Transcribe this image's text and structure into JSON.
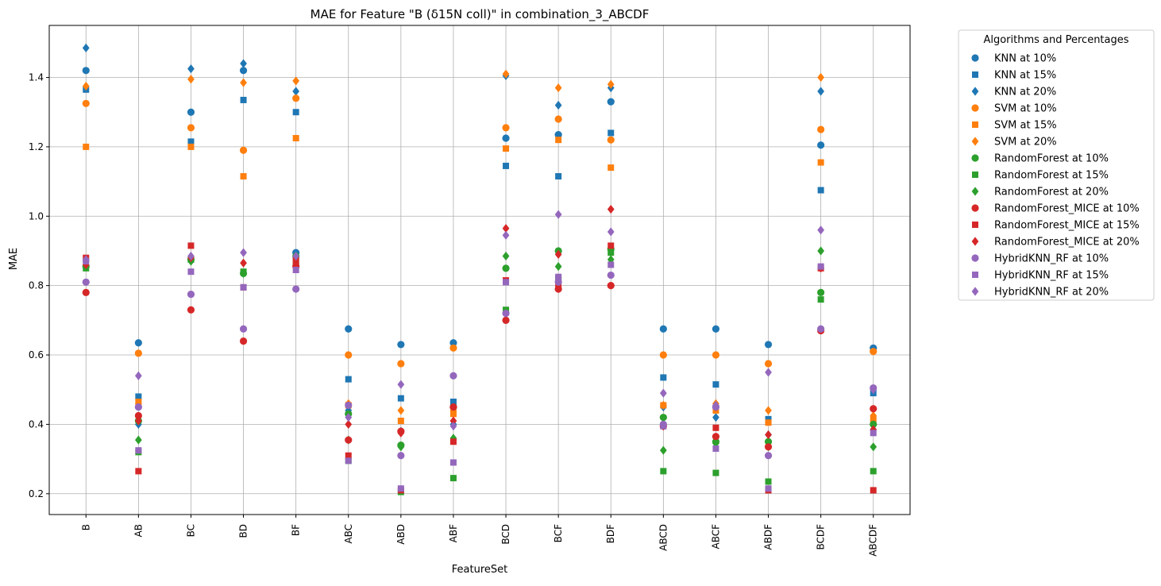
{
  "chart_data": {
    "type": "scatter",
    "title": "MAE for Feature \"B (δ15N coll)\" in combination_3_ABCDF",
    "xlabel": "FeatureSet",
    "ylabel": "MAE",
    "categories": [
      "B",
      "AB",
      "BC",
      "BD",
      "BF",
      "ABC",
      "ABD",
      "ABF",
      "BCD",
      "BCF",
      "BDF",
      "ABCD",
      "ABCF",
      "ABDF",
      "BCDF",
      "ABCDF"
    ],
    "ylim": [
      0.14,
      1.55
    ],
    "yticks": [
      0.2,
      0.4,
      0.6,
      0.8,
      1.0,
      1.2,
      1.4
    ],
    "ytick_labels": [
      "0.2",
      "0.4",
      "0.6",
      "0.8",
      "1.0",
      "1.2",
      "1.4"
    ],
    "grid": true,
    "legend": {
      "title": "Algorithms and Percentages",
      "placement": "outside-right"
    },
    "series": [
      {
        "name": "KNN at 10%",
        "color": "#1f77b4",
        "marker": "circle",
        "values": [
          1.42,
          0.635,
          1.3,
          1.42,
          0.895,
          0.675,
          0.63,
          0.635,
          1.225,
          1.235,
          1.33,
          0.675,
          0.675,
          0.63,
          1.205,
          0.62
        ]
      },
      {
        "name": "KNN at 15%",
        "color": "#1f77b4",
        "marker": "square",
        "values": [
          1.365,
          0.48,
          1.215,
          1.335,
          1.3,
          0.53,
          0.475,
          0.465,
          1.145,
          1.115,
          1.24,
          0.535,
          0.515,
          0.415,
          1.075,
          0.49
        ]
      },
      {
        "name": "KNN at 20%",
        "color": "#1f77b4",
        "marker": "diamond",
        "values": [
          1.485,
          0.4,
          1.425,
          1.44,
          1.36,
          0.44,
          0.38,
          0.4,
          1.405,
          1.32,
          1.37,
          0.45,
          0.42,
          0.37,
          1.36,
          0.385
        ]
      },
      {
        "name": "SVM at 10%",
        "color": "#ff7f0e",
        "marker": "circle",
        "values": [
          1.325,
          0.605,
          1.255,
          1.19,
          1.34,
          0.6,
          0.575,
          0.62,
          1.255,
          1.28,
          1.22,
          0.6,
          0.6,
          0.575,
          1.25,
          0.61
        ]
      },
      {
        "name": "SVM at 15%",
        "color": "#ff7f0e",
        "marker": "square",
        "values": [
          1.2,
          0.465,
          1.2,
          1.115,
          1.225,
          0.455,
          0.41,
          0.43,
          1.195,
          1.22,
          1.14,
          0.455,
          0.44,
          0.405,
          1.155,
          0.415
        ]
      },
      {
        "name": "SVM at 20%",
        "color": "#ff7f0e",
        "marker": "diamond",
        "values": [
          1.375,
          0.46,
          1.395,
          1.385,
          1.39,
          0.46,
          0.44,
          0.44,
          1.41,
          1.37,
          1.38,
          0.455,
          0.46,
          0.44,
          1.4,
          0.425
        ]
      },
      {
        "name": "RandomForest at 10%",
        "color": "#2ca02c",
        "marker": "circle",
        "values": [
          0.855,
          0.41,
          0.875,
          0.835,
          0.885,
          0.43,
          0.34,
          0.45,
          0.85,
          0.9,
          0.905,
          0.42,
          0.35,
          0.35,
          0.78,
          0.4
        ]
      },
      {
        "name": "RandomForest at 15%",
        "color": "#2ca02c",
        "marker": "square",
        "values": [
          0.85,
          0.32,
          0.875,
          0.84,
          0.87,
          0.295,
          0.205,
          0.245,
          0.73,
          0.82,
          0.895,
          0.265,
          0.26,
          0.235,
          0.76,
          0.265
        ]
      },
      {
        "name": "RandomForest at 20%",
        "color": "#2ca02c",
        "marker": "diamond",
        "values": [
          0.87,
          0.355,
          0.87,
          0.835,
          0.86,
          0.355,
          0.335,
          0.36,
          0.885,
          0.855,
          0.875,
          0.325,
          0.345,
          0.335,
          0.9,
          0.335
        ]
      },
      {
        "name": "RandomForest_MICE at 10%",
        "color": "#d62728",
        "marker": "circle",
        "values": [
          0.78,
          0.425,
          0.73,
          0.64,
          0.855,
          0.355,
          0.38,
          0.45,
          0.7,
          0.79,
          0.8,
          0.395,
          0.365,
          0.335,
          0.67,
          0.445
        ]
      },
      {
        "name": "RandomForest_MICE at 15%",
        "color": "#d62728",
        "marker": "square",
        "values": [
          0.88,
          0.265,
          0.915,
          0.795,
          0.87,
          0.31,
          0.21,
          0.35,
          0.815,
          0.8,
          0.915,
          0.395,
          0.39,
          0.21,
          0.85,
          0.21
        ]
      },
      {
        "name": "RandomForest_MICE at 20%",
        "color": "#d62728",
        "marker": "diamond",
        "values": [
          0.86,
          0.41,
          0.88,
          0.865,
          0.88,
          0.4,
          0.375,
          0.41,
          0.965,
          0.89,
          1.02,
          0.395,
          0.45,
          0.37,
          0.85,
          0.385
        ]
      },
      {
        "name": "HybridKNN_RF at 10%",
        "color": "#9467bd",
        "marker": "circle",
        "values": [
          0.81,
          0.45,
          0.775,
          0.675,
          0.79,
          0.455,
          0.31,
          0.54,
          0.72,
          0.81,
          0.83,
          0.4,
          0.45,
          0.31,
          0.675,
          0.505
        ]
      },
      {
        "name": "HybridKNN_RF at 15%",
        "color": "#9467bd",
        "marker": "square",
        "values": [
          0.87,
          0.325,
          0.84,
          0.795,
          0.845,
          0.295,
          0.215,
          0.29,
          0.81,
          0.825,
          0.86,
          0.395,
          0.33,
          0.215,
          0.855,
          0.375
        ]
      },
      {
        "name": "HybridKNN_RF at 20%",
        "color": "#9467bd",
        "marker": "diamond",
        "values": [
          0.875,
          0.54,
          0.885,
          0.895,
          0.885,
          0.42,
          0.515,
          0.395,
          0.945,
          1.005,
          0.955,
          0.49,
          0.455,
          0.55,
          0.96,
          0.5
        ]
      }
    ]
  }
}
